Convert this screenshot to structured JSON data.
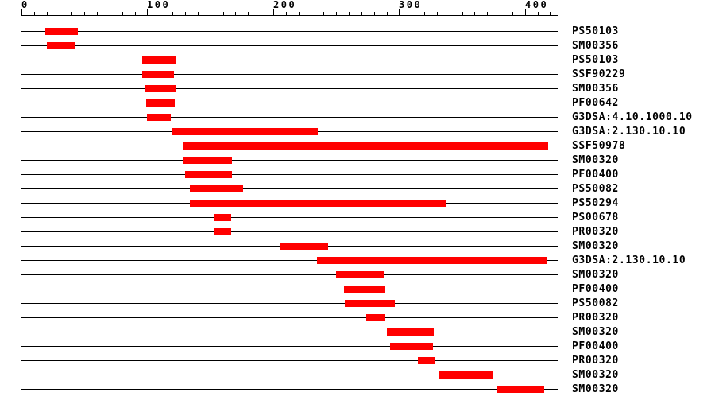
{
  "chart_data": {
    "type": "bar",
    "subtype": "horizontal-range-domains",
    "title": "",
    "xlabel": "",
    "ylabel": "",
    "legend": "none",
    "grid": "off",
    "axis": {
      "position": "top",
      "min": 0,
      "max": 426,
      "major_ticks": [
        0,
        100,
        200,
        300,
        400
      ],
      "minor_tick_step": 10,
      "minor_tick_max": 420
    },
    "colors": {
      "bar": "#ff0000",
      "line": "#000000",
      "text": "#000000",
      "background": "#ffffff"
    },
    "rows": [
      {
        "label": "PS50103",
        "start": 19,
        "end": 45
      },
      {
        "label": "SM00356",
        "start": 20,
        "end": 43
      },
      {
        "label": "PS50103",
        "start": 96,
        "end": 123
      },
      {
        "label": "SSF90229",
        "start": 96,
        "end": 121
      },
      {
        "label": "SM00356",
        "start": 98,
        "end": 123
      },
      {
        "label": "PF00642",
        "start": 99,
        "end": 122
      },
      {
        "label": "G3DSA:4.10.1000.10",
        "start": 100,
        "end": 119
      },
      {
        "label": "G3DSA:2.130.10.10",
        "start": 119,
        "end": 235
      },
      {
        "label": "SSF50978",
        "start": 128,
        "end": 418
      },
      {
        "label": "SM00320",
        "start": 128,
        "end": 167
      },
      {
        "label": "PF00400",
        "start": 130,
        "end": 167
      },
      {
        "label": "PS50082",
        "start": 134,
        "end": 176
      },
      {
        "label": "PS50294",
        "start": 134,
        "end": 337
      },
      {
        "label": "PS00678",
        "start": 153,
        "end": 167
      },
      {
        "label": "PR00320",
        "start": 153,
        "end": 167
      },
      {
        "label": "SM00320",
        "start": 206,
        "end": 244
      },
      {
        "label": "G3DSA:2.130.10.10",
        "start": 235,
        "end": 418
      },
      {
        "label": "SM00320",
        "start": 250,
        "end": 288
      },
      {
        "label": "PF00400",
        "start": 256,
        "end": 288
      },
      {
        "label": "PS50082",
        "start": 257,
        "end": 297
      },
      {
        "label": "PR00320",
        "start": 274,
        "end": 289
      },
      {
        "label": "SM00320",
        "start": 290,
        "end": 327
      },
      {
        "label": "PF00400",
        "start": 293,
        "end": 327
      },
      {
        "label": "PR00320",
        "start": 315,
        "end": 329
      },
      {
        "label": "SM00320",
        "start": 332,
        "end": 375
      },
      {
        "label": "SM00320",
        "start": 378,
        "end": 415
      }
    ]
  }
}
